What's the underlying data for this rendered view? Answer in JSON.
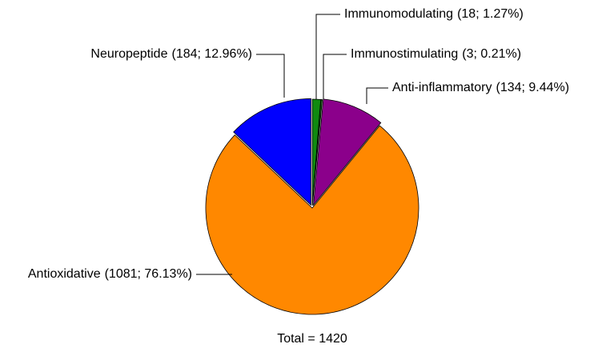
{
  "chart_data": {
    "type": "pie",
    "categories": [
      "Immunomodulating",
      "Immunostimulating",
      "Anti-inflammatory",
      "Antioxidative",
      "Neuropeptide"
    ],
    "values": [
      18,
      3,
      134,
      1081,
      184
    ],
    "value_labels": [
      "(18; 1.27%)",
      "(3; 0.21%)",
      "(134; 9.44%)",
      "(1081; 76.13%)",
      "(184; 12.96%)"
    ],
    "colors": [
      "#108a10",
      "#0a6a0a",
      "#8b008b",
      "#ff8800",
      "#0000ff"
    ],
    "footer": "Total = 1420"
  }
}
